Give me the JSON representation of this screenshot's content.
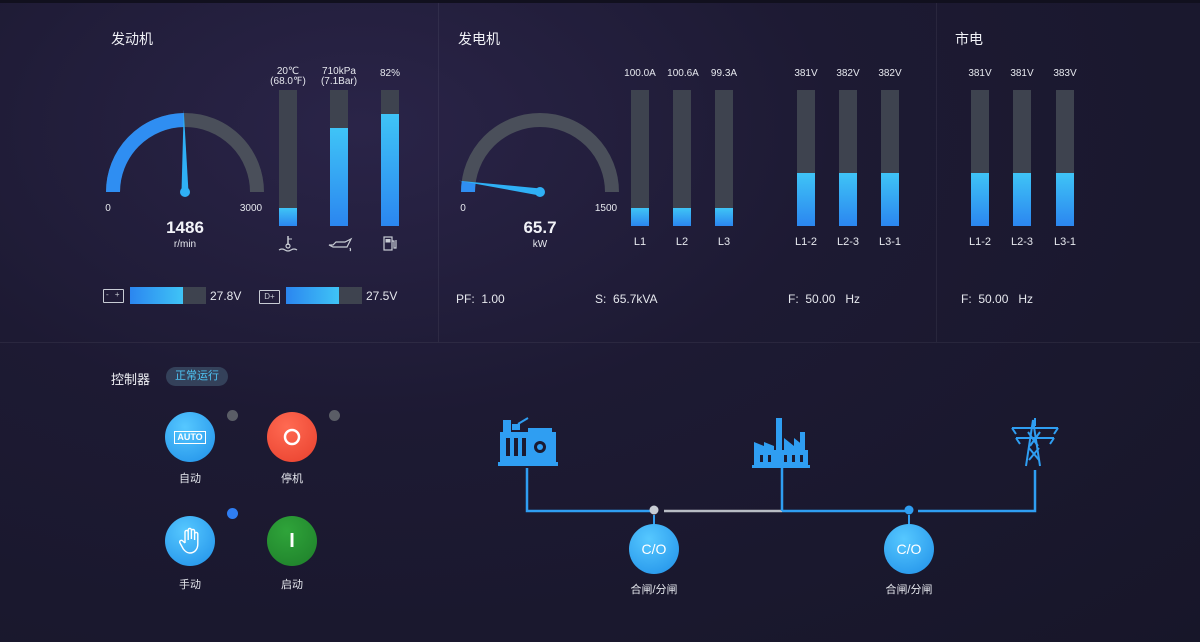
{
  "engine": {
    "title": "发动机",
    "speed_value": "1486",
    "speed_unit": "r/min",
    "gauge_min": "0",
    "gauge_max": "3000",
    "speed_fraction": 0.495,
    "temp_label": "20℃",
    "temp_label2": "(68.0℉)",
    "temp_fraction": 0.13,
    "pressure_label": "710kPa",
    "pressure_label2": "(7.1Bar)",
    "pressure_fraction": 0.72,
    "fuel_label": "82%",
    "fuel_fraction": 0.82,
    "battery_value": "27.8V",
    "battery_fraction": 0.7,
    "battery_icon_text": "- +",
    "dplus_value": "27.5V",
    "dplus_fraction": 0.7,
    "dplus_icon_text": "D+"
  },
  "generator": {
    "title": "发电机",
    "power_value": "65.7",
    "power_unit": "kW",
    "gauge_min": "0",
    "gauge_max": "1500",
    "power_fraction": 0.044,
    "currents": [
      {
        "value": "100.0A",
        "label": "L1",
        "fraction": 0.13
      },
      {
        "value": "100.6A",
        "label": "L2",
        "fraction": 0.13
      },
      {
        "value": "99.3A",
        "label": "L3",
        "fraction": 0.13
      }
    ],
    "voltages": [
      {
        "value": "381V",
        "label": "L1-2",
        "fraction": 0.39
      },
      {
        "value": "382V",
        "label": "L2-3",
        "fraction": 0.39
      },
      {
        "value": "382V",
        "label": "L3-1",
        "fraction": 0.39
      }
    ],
    "pf_label": "PF:",
    "pf_value": "1.00",
    "s_label": "S:",
    "s_value": "65.7kVA",
    "f_label": "F:",
    "f_value": "50.00",
    "f_unit": "Hz"
  },
  "mains": {
    "title": "市电",
    "voltages": [
      {
        "value": "381V",
        "label": "L1-2",
        "fraction": 0.39
      },
      {
        "value": "381V",
        "label": "L2-3",
        "fraction": 0.39
      },
      {
        "value": "383V",
        "label": "L3-1",
        "fraction": 0.39
      }
    ],
    "f_label": "F:",
    "f_value": "50.00",
    "f_unit": "Hz"
  },
  "controller": {
    "title": "控制器",
    "status": "正常运行",
    "auto_icon_text": "AUTO",
    "auto_label": "自动",
    "stop_label": "停机",
    "manual_label": "手动",
    "start_icon_text": "I",
    "start_label": "启动"
  },
  "diagram": {
    "co1_text": "C/O",
    "co1_label": "合闸/分闸",
    "co2_text": "C/O",
    "co2_label": "合闸/分闸"
  },
  "colors": {
    "accent": "#2f9ef2",
    "bar_track": "#3e434f",
    "stop_red": "#e8402d",
    "start_green": "#1e7e2a",
    "line_gray": "#b8bcc4"
  }
}
